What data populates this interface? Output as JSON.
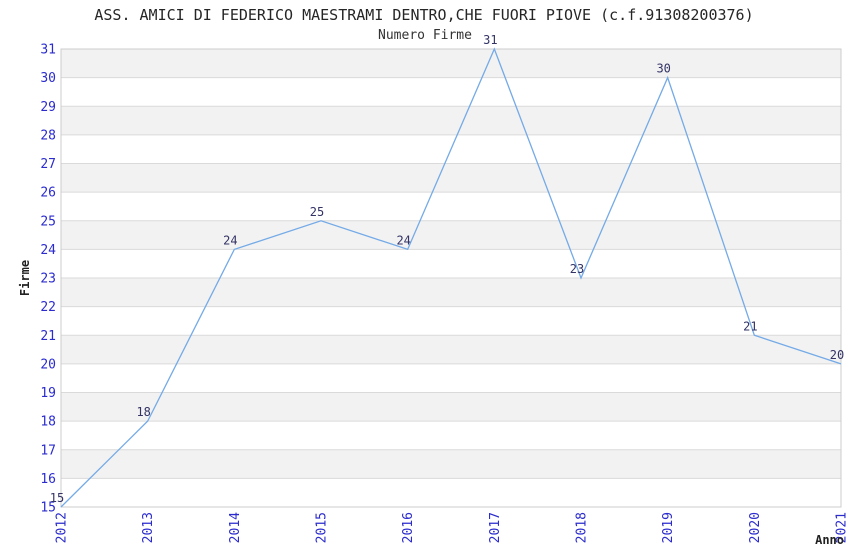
{
  "chart_data": {
    "type": "line",
    "title": "ASS. AMICI DI FEDERICO MAESTRAMI DENTRO,CHE FUORI PIOVE (c.f.91308200376)",
    "subtitle": "Numero Firme",
    "xlabel": "Anno",
    "ylabel": "Firme",
    "categories": [
      "2012",
      "2013",
      "2014",
      "2015",
      "2016",
      "2017",
      "2018",
      "2019",
      "2020",
      "2021"
    ],
    "values": [
      15,
      18,
      24,
      25,
      24,
      31,
      23,
      30,
      21,
      20
    ],
    "ylim": [
      15,
      31
    ],
    "ytick_step": 1,
    "grid": true,
    "legend_position": "none",
    "band_striping": "alternating horizontal bands",
    "colors": {
      "line": "#74AAE7",
      "tick_text": "#2B2BCE",
      "point_label_text": "#333366",
      "band_fill": "#F2F2F2",
      "gridline": "#DADADA",
      "plot_border": "#CCCCCC",
      "background": "#FFFFFF"
    }
  }
}
